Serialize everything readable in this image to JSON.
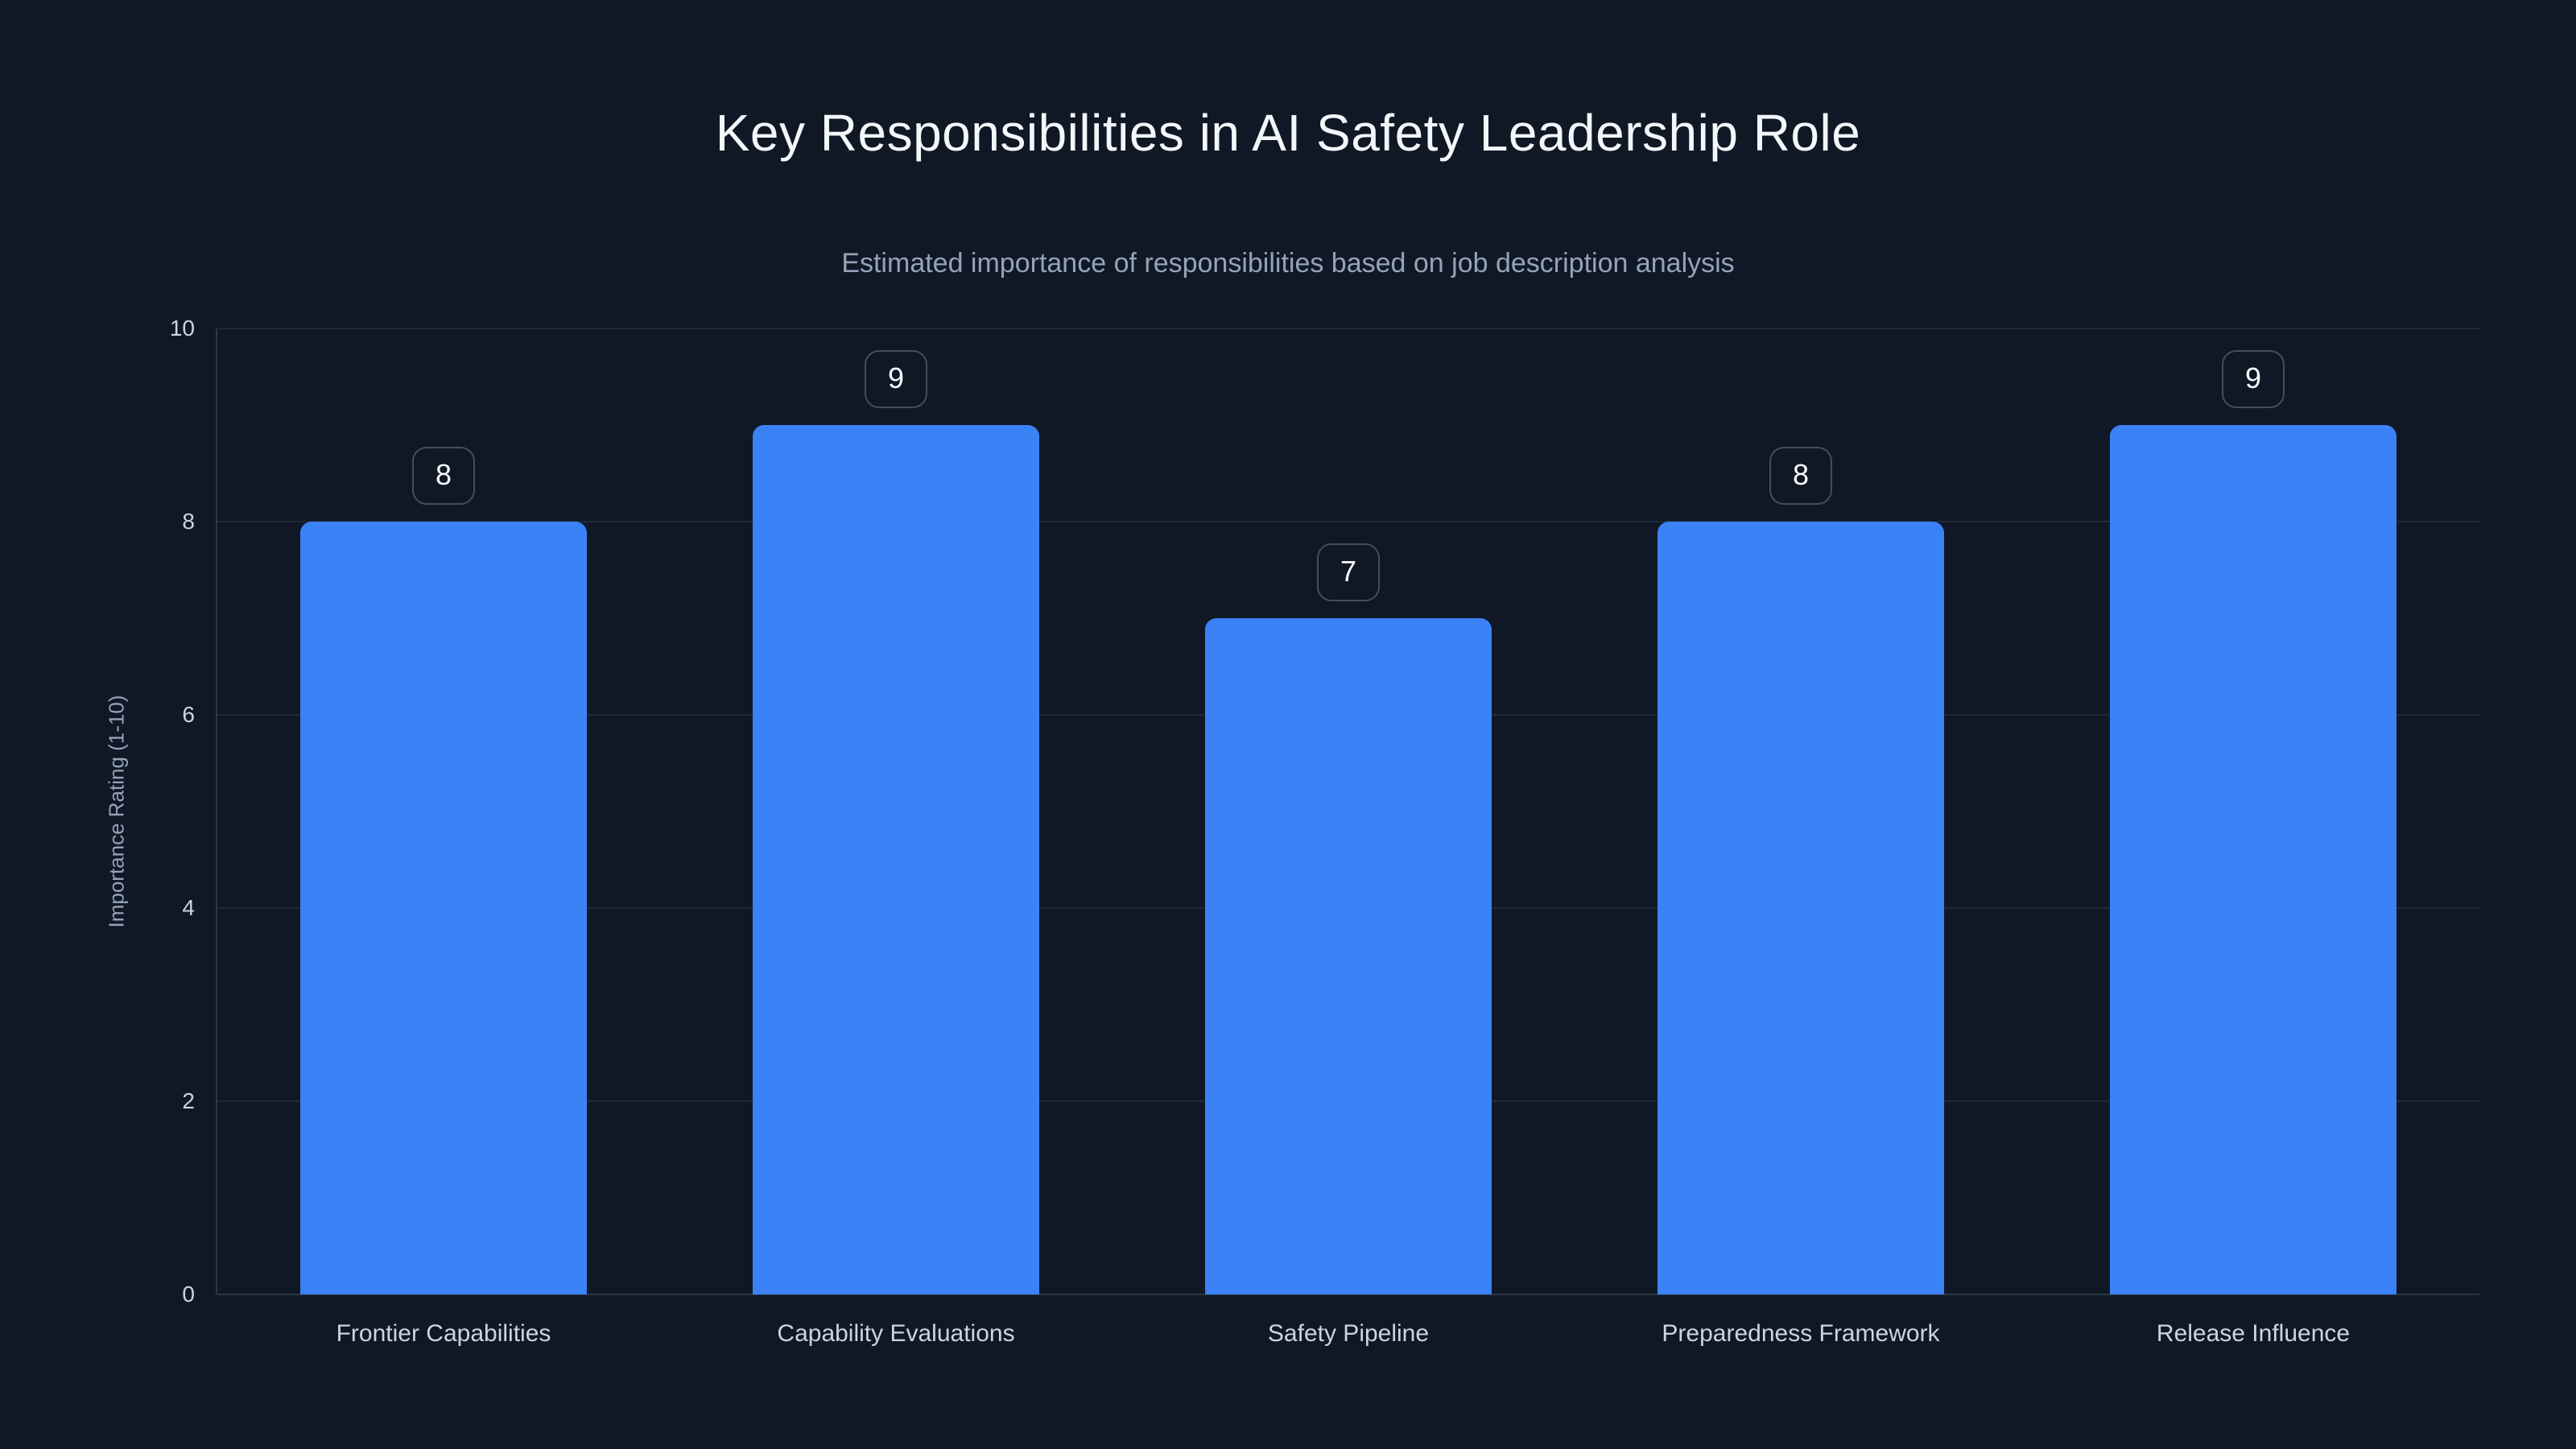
{
  "header": {
    "title": "Key Responsibilities in AI Safety Leadership Role",
    "subtitle": "Estimated importance of responsibilities based on job description analysis"
  },
  "chart_data": {
    "type": "bar",
    "title": "Key Responsibilities in AI Safety Leadership Role",
    "subtitle": "Estimated importance of responsibilities based on job description analysis",
    "categories": [
      "Frontier Capabilities",
      "Capability Evaluations",
      "Safety Pipeline",
      "Preparedness Framework",
      "Release Influence"
    ],
    "values": [
      8,
      9,
      7,
      8,
      9
    ],
    "value_labels": [
      "8",
      "9",
      "7",
      "8",
      "9"
    ],
    "xlabel": "",
    "ylabel": "Importance Rating (1-10)",
    "ylim": [
      0,
      10
    ],
    "yticks": [
      0,
      2,
      4,
      6,
      8,
      10
    ],
    "grid": true,
    "legend": "none",
    "value_label_style": "rounded-badge-above-bar"
  },
  "colors": {
    "background": "#101826",
    "bar_fill": "#3b82f6",
    "gridline": "rgba(148,163,184,0.13)",
    "axis_line": "rgba(148,163,184,0.22)",
    "title_text": "#f3f6fa",
    "subtitle_text": "#94a3b8",
    "tick_text": "#cbd5e1",
    "category_text": "#cbd5e1",
    "y_axis_title_text": "#94a3b8",
    "badge_border": "#414e63",
    "badge_text": "#f8fafc"
  }
}
